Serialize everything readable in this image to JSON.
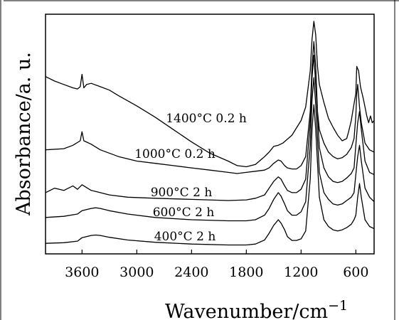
{
  "chart_data": {
    "type": "line",
    "xlabel": "Wavenumber/cm",
    "xlabel_sup": "−1",
    "ylabel": "Absorbance/a. u.",
    "x_reversed": true,
    "xlim": [
      4000,
      400
    ],
    "ylim": [
      0,
      100
    ],
    "xticks": [
      3600,
      3000,
      2400,
      1800,
      1200,
      600
    ],
    "xtick_labels": [
      "3600",
      "3000",
      "2400",
      "1800",
      "1200",
      "600"
    ],
    "grid": false,
    "series": [
      {
        "name": "400°C 2 h",
        "x": [
          4000,
          3800,
          3650,
          3600,
          3500,
          3450,
          3400,
          3300,
          3100,
          2800,
          2400,
          2000,
          1800,
          1700,
          1600,
          1550,
          1500,
          1450,
          1420,
          1380,
          1350,
          1300,
          1250,
          1200,
          1150,
          1100,
          1080,
          1060,
          1040,
          1000,
          950,
          900,
          850,
          800,
          750,
          700,
          650,
          620,
          600,
          580,
          560,
          540,
          500,
          450,
          400
        ],
        "y": [
          1.5,
          1.8,
          2.5,
          4.0,
          5.0,
          5.2,
          5.0,
          4.2,
          3.0,
          2.0,
          1.2,
          0.8,
          0.8,
          1.2,
          3.0,
          6.0,
          9.5,
          12.0,
          10.5,
          7.5,
          4.5,
          2.8,
          2.8,
          3.5,
          7.0,
          30.0,
          52.0,
          63.0,
          52.0,
          22.0,
          12.0,
          9.0,
          7.5,
          7.0,
          7.5,
          8.5,
          10.0,
          12.0,
          14.0,
          22.0,
          28.0,
          22.0,
          12.0,
          9.0,
          8.0
        ]
      },
      {
        "name": "600°C 2 h",
        "x": [
          4000,
          3800,
          3650,
          3600,
          3500,
          3450,
          3400,
          3300,
          3100,
          2800,
          2400,
          2000,
          1800,
          1700,
          1600,
          1550,
          1500,
          1450,
          1420,
          1380,
          1350,
          1300,
          1250,
          1200,
          1150,
          1100,
          1080,
          1060,
          1040,
          1000,
          950,
          900,
          850,
          800,
          750,
          700,
          650,
          620,
          600,
          580,
          560,
          540,
          500,
          450,
          400
        ],
        "y": [
          13.0,
          13.5,
          14.5,
          16.0,
          17.0,
          17.3,
          17.0,
          16.0,
          14.5,
          13.0,
          12.0,
          11.5,
          11.5,
          12.0,
          14.0,
          17.0,
          21.0,
          24.0,
          22.5,
          19.0,
          16.0,
          14.0,
          14.0,
          15.5,
          20.0,
          45.0,
          65.0,
          75.0,
          63.0,
          33.0,
          24.0,
          21.0,
          19.0,
          18.5,
          19.0,
          20.5,
          22.0,
          24.0,
          32.0,
          40.0,
          45.0,
          38.0,
          26.0,
          22.0,
          20.0
        ]
      },
      {
        "name": "900°C 2 h",
        "x": [
          4000,
          3900,
          3800,
          3700,
          3650,
          3600,
          3500,
          3450,
          3400,
          3300,
          3100,
          2800,
          2400,
          2000,
          1800,
          1700,
          1600,
          1550,
          1500,
          1450,
          1420,
          1380,
          1350,
          1300,
          1250,
          1200,
          1150,
          1100,
          1080,
          1060,
          1040,
          1000,
          950,
          900,
          850,
          800,
          750,
          700,
          650,
          620,
          600,
          580,
          560,
          540,
          500,
          450,
          400
        ],
        "y": [
          24.0,
          26.0,
          25.0,
          27.0,
          25.5,
          27.5,
          25.0,
          24.5,
          24.0,
          23.0,
          22.0,
          21.5,
          21.0,
          20.5,
          20.8,
          21.5,
          23.0,
          26.0,
          29.0,
          31.0,
          30.0,
          27.0,
          25.0,
          24.0,
          24.0,
          25.5,
          30.0,
          55.0,
          75.0,
          85.0,
          72.0,
          44.0,
          35.0,
          31.0,
          29.0,
          28.5,
          29.0,
          30.5,
          32.5,
          35.0,
          45.0,
          55.0,
          60.0,
          52.0,
          38.0,
          33.0,
          32.0
        ]
      },
      {
        "name": "1000°C 0.2 h",
        "x": [
          4000,
          3800,
          3700,
          3620,
          3600,
          3580,
          3500,
          3400,
          3200,
          3000,
          2800,
          2600,
          2400,
          2200,
          2000,
          1900,
          1800,
          1700,
          1600,
          1550,
          1500,
          1450,
          1420,
          1380,
          1350,
          1300,
          1250,
          1200,
          1150,
          1100,
          1080,
          1060,
          1040,
          1020,
          1000,
          950,
          900,
          850,
          800,
          750,
          700,
          650,
          620,
          600,
          590,
          580,
          560,
          540,
          500,
          450,
          400
        ],
        "y": [
          43.0,
          43.5,
          45.0,
          47.0,
          51.0,
          47.0,
          45.5,
          43.0,
          40.0,
          38.0,
          37.0,
          36.0,
          35.0,
          34.0,
          33.0,
          32.5,
          33.0,
          33.5,
          34.0,
          35.0,
          37.0,
          38.5,
          38.0,
          36.0,
          35.0,
          34.5,
          34.5,
          36.0,
          40.0,
          60.0,
          80.0,
          91.0,
          80.0,
          60.0,
          52.0,
          46.0,
          42.0,
          40.0,
          39.0,
          39.5,
          41.0,
          44.0,
          48.0,
          58.0,
          68.0,
          72.0,
          62.0,
          55.0,
          46.0,
          43.0,
          42.0
        ]
      },
      {
        "name": "1400°C 0.2 h",
        "x": [
          4000,
          3900,
          3800,
          3700,
          3650,
          3620,
          3600,
          3580,
          3550,
          3500,
          3400,
          3300,
          3200,
          3000,
          2800,
          2600,
          2400,
          2200,
          2000,
          1900,
          1800,
          1700,
          1600,
          1550,
          1500,
          1450,
          1400,
          1300,
          1200,
          1150,
          1100,
          1080,
          1060,
          1040,
          1020,
          1000,
          950,
          900,
          850,
          800,
          750,
          700,
          680,
          650,
          630,
          600,
          590,
          570,
          550,
          520,
          500,
          480,
          460,
          440,
          420,
          400
        ],
        "y": [
          75.5,
          73.5,
          72.0,
          70.5,
          70.0,
          71.0,
          76.5,
          70.5,
          72.0,
          72.5,
          71.0,
          69.5,
          67.0,
          62.5,
          57.5,
          52.0,
          46.5,
          41.5,
          38.0,
          36.0,
          35.5,
          36.5,
          40.0,
          42.0,
          44.5,
          45.0,
          46.0,
          49.5,
          56.0,
          62.0,
          78.0,
          92.0,
          100.0,
          94.0,
          80.0,
          72.0,
          64.0,
          57.0,
          53.0,
          49.5,
          47.0,
          48.0,
          51.0,
          56.0,
          61.0,
          68.0,
          80.0,
          78.0,
          71.0,
          66.0,
          62.0,
          58.0,
          55.0,
          58.0,
          55.0,
          56.0
        ]
      }
    ]
  }
}
